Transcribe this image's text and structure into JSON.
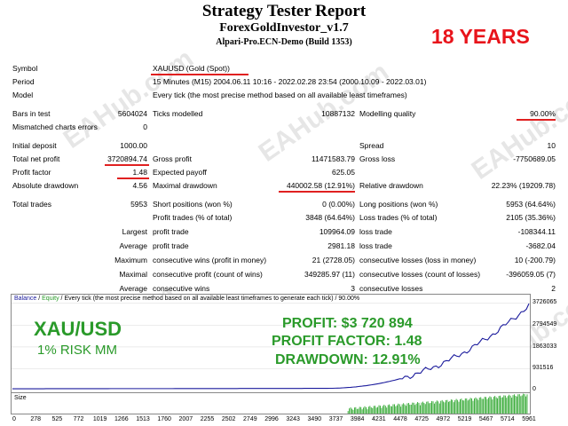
{
  "header": {
    "title": "Strategy Tester Report",
    "ea_name": "ForexGoldInvestor_v1.7",
    "broker": "Alpari-Pro.ECN-Demo (Build 1353)",
    "years_badge": "18 YEARS"
  },
  "watermark": "EAHub.com",
  "report": {
    "symbol_label": "Symbol",
    "symbol_value": "XAUUSD (Gold (Spot))",
    "period_label": "Period",
    "period_value": "15 Minutes (M15) 2004.06.11 10:16 - 2022.02.28 23:54 (2000.10.09 - 2022.03.01)",
    "model_label": "Model",
    "model_value": "Every tick (the most precise method based on all available least timeframes)",
    "bars_label": "Bars in test",
    "bars_value": "5604024",
    "ticks_label": "Ticks modelled",
    "ticks_value": "10887132",
    "quality_label": "Modelling quality",
    "quality_value": "90.00%",
    "mismatch_label": "Mismatched charts errors",
    "mismatch_value": "0",
    "deposit_label": "Initial deposit",
    "deposit_value": "1000.00",
    "spread_label": "Spread",
    "spread_value": "10",
    "netprofit_label": "Total net profit",
    "netprofit_value": "3720894.74",
    "grossprofit_label": "Gross profit",
    "grossprofit_value": "11471583.79",
    "grossloss_label": "Gross loss",
    "grossloss_value": "-7750689.05",
    "pf_label": "Profit factor",
    "pf_value": "1.48",
    "payoff_label": "Expected payoff",
    "payoff_value": "625.05",
    "absdd_label": "Absolute drawdown",
    "absdd_value": "4.56",
    "maxdd_label": "Maximal drawdown",
    "maxdd_value": "440002.58 (12.91%)",
    "reldd_label": "Relative drawdown",
    "reldd_value": "22.23% (19209.78)",
    "trades_label": "Total trades",
    "trades_value": "5953",
    "short_label": "Short positions (won %)",
    "short_value": "0 (0.00%)",
    "long_label": "Long positions (won %)",
    "long_value": "5953 (64.64%)",
    "profit_trades_label": "Profit trades (% of total)",
    "profit_trades_value": "3848 (64.64%)",
    "loss_trades_label": "Loss trades (% of total)",
    "loss_trades_value": "2105 (35.36%)",
    "largest_label": "Largest",
    "largest_profit_label": "profit trade",
    "largest_profit_value": "109964.09",
    "largest_loss_label": "loss trade",
    "largest_loss_value": "-108344.11",
    "average_label": "Average",
    "avg_profit_label": "profit trade",
    "avg_profit_value": "2981.18",
    "avg_loss_label": "loss trade",
    "avg_loss_value": "-3682.04",
    "maximum_label": "Maximum",
    "max_cw_label": "consecutive wins (profit in money)",
    "max_cw_value": "21 (2728.05)",
    "max_cl_label": "consecutive losses (loss in money)",
    "max_cl_value": "10 (-200.79)",
    "maximal_label": "Maximal",
    "mx_cp_label": "consecutive profit (count of wins)",
    "mx_cp_value": "349285.97 (11)",
    "mx_cl_label": "consecutive losses (count of losses)",
    "mx_cl_value": "-396059.05 (7)",
    "average2_label": "Average",
    "avg_cw_label": "consecutive wins",
    "avg_cw_value": "3",
    "avg_cl_label": "consecutive losses",
    "avg_cl_value": "2"
  },
  "chart": {
    "legend_balance": "Balance",
    "legend_sep": " / ",
    "legend_equity": "Equity",
    "legend_rest": " / Every tick (the most precise method based on all available least timeframes to generate each tick) / 90.00%",
    "size_label": "Size",
    "y_ticks": [
      "3726065",
      "2794549",
      "1863033",
      "931516",
      "0"
    ],
    "x_ticks": [
      "0",
      "278",
      "525",
      "772",
      "1019",
      "1266",
      "1513",
      "1760",
      "2007",
      "2255",
      "2502",
      "2749",
      "2996",
      "3243",
      "3490",
      "3737",
      "3984",
      "4231",
      "4478",
      "4725",
      "4972",
      "5219",
      "5467",
      "5714",
      "5961"
    ],
    "balance_color": "#1a1a9c",
    "size_color": "#2aa52a"
  },
  "overlay": {
    "pair": "XAU/USD",
    "risk": "1% RISK MM",
    "profit": "PROFIT: $3 720 894",
    "pf": "PROFIT FACTOR: 1.48",
    "dd": "DRAWDOWN: 12.91%",
    "color": "#2a9a2a"
  }
}
